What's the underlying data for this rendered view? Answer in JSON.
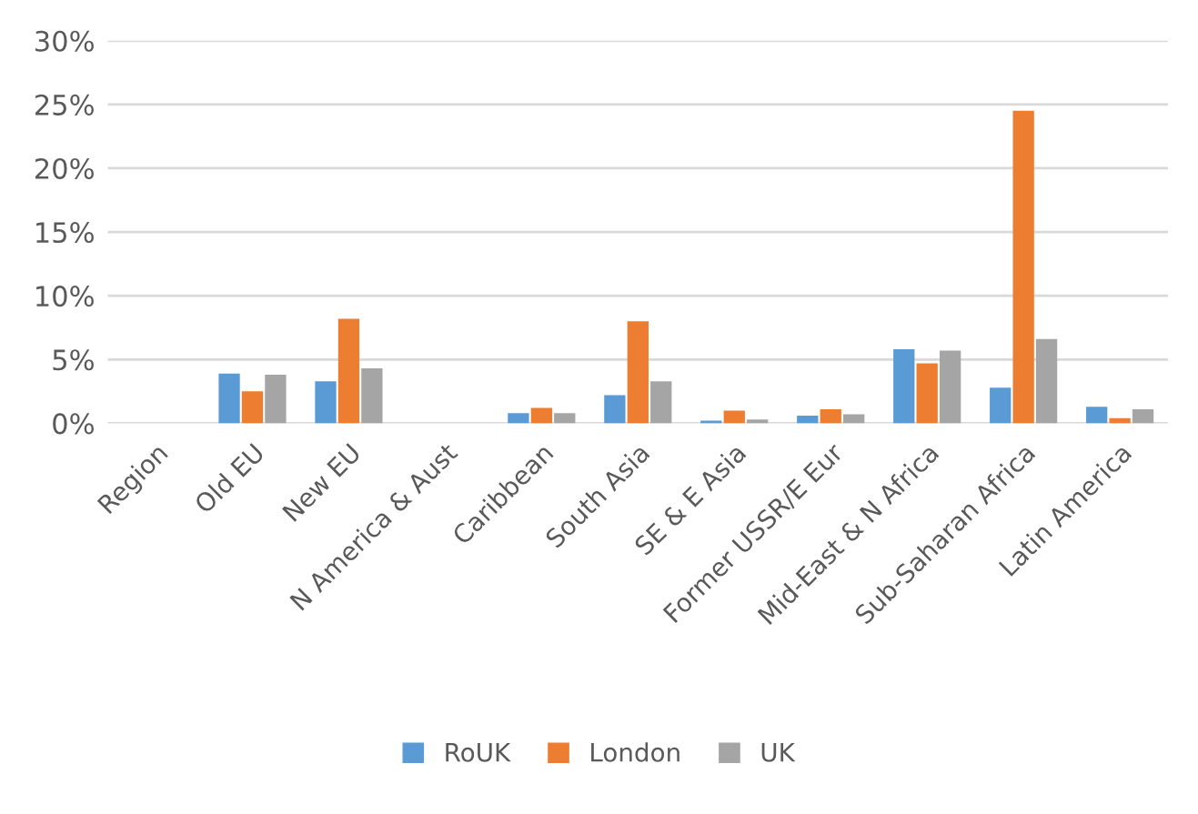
{
  "chart_data": {
    "type": "bar",
    "categories": [
      "Region",
      "Old EU",
      "New EU",
      "N America & Aust",
      "Caribbean",
      "South Asia",
      "SE & E Asia",
      "Former USSR/E Eur",
      "Mid-East & N Africa",
      "Sub-Saharan Africa",
      "Latin America"
    ],
    "series": [
      {
        "name": "RoUK",
        "color": "#5b9bd5",
        "values": [
          null,
          3.9,
          3.3,
          null,
          0.8,
          2.2,
          0.2,
          0.6,
          5.8,
          2.8,
          1.3
        ]
      },
      {
        "name": "London",
        "color": "#ed7d31",
        "values": [
          null,
          2.5,
          8.2,
          null,
          1.2,
          8.0,
          1.0,
          1.1,
          4.7,
          24.5,
          0.4
        ]
      },
      {
        "name": "UK",
        "color": "#a5a5a5",
        "values": [
          null,
          3.8,
          4.3,
          null,
          0.8,
          3.3,
          0.3,
          0.7,
          5.7,
          6.6,
          1.1
        ]
      }
    ],
    "ylim": [
      0,
      30
    ],
    "yticks": [
      {
        "value": 0,
        "label": "0%"
      },
      {
        "value": 5,
        "label": "5%"
      },
      {
        "value": 10,
        "label": "10%"
      },
      {
        "value": 15,
        "label": "15%"
      },
      {
        "value": 20,
        "label": "20%"
      },
      {
        "value": 25,
        "label": "25%"
      },
      {
        "value": 30,
        "label": "30%"
      }
    ],
    "grid": "y",
    "legend": "bottom"
  }
}
